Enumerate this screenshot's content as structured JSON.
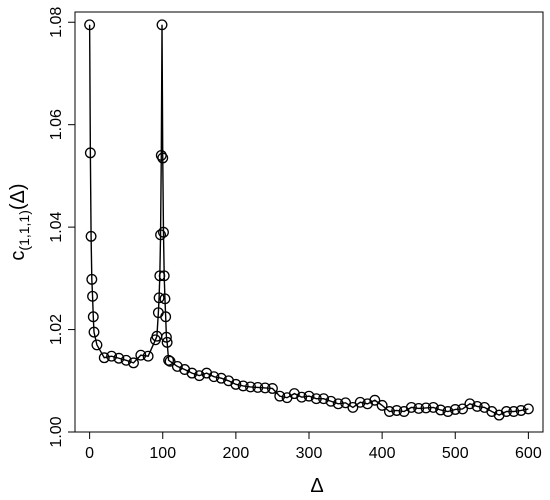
{
  "chart_data": {
    "type": "line",
    "title": "",
    "xlabel": "Δ",
    "ylabel": "c",
    "ylabel_subscript": "(1,1,1)",
    "ylabel_suffix": "(Δ)",
    "xlim": [
      -20,
      620
    ],
    "ylim": [
      1.0,
      1.082
    ],
    "xticks": [
      0,
      100,
      200,
      300,
      400,
      500,
      600
    ],
    "yticks": [
      1.0,
      1.02,
      1.04,
      1.06,
      1.08
    ],
    "xtick_labels": [
      "0",
      "100",
      "200",
      "300",
      "400",
      "500",
      "600"
    ],
    "ytick_labels": [
      "1.00",
      "1.02",
      "1.04",
      "1.06",
      "1.08"
    ],
    "grid": false,
    "markers": "open-circle",
    "series": [
      {
        "x": [
          0,
          1,
          2,
          3,
          4,
          5,
          6,
          10,
          20,
          30,
          40,
          50,
          60,
          70,
          80,
          90,
          92,
          94,
          95,
          96,
          97,
          98,
          99,
          100,
          101,
          102,
          103,
          104,
          105,
          106,
          108,
          110,
          120,
          130,
          140,
          150,
          160,
          170,
          180,
          190,
          200,
          210,
          220,
          230,
          240,
          250,
          260,
          270,
          280,
          290,
          300,
          310,
          320,
          330,
          340,
          350,
          360,
          370,
          380,
          390,
          400,
          410,
          420,
          430,
          440,
          450,
          460,
          470,
          480,
          490,
          500,
          510,
          520,
          530,
          540,
          550,
          560,
          570,
          580,
          590,
          600
        ],
        "y": [
          1.0795,
          1.0545,
          1.0382,
          1.0298,
          1.0265,
          1.0225,
          1.0195,
          1.017,
          1.0145,
          1.0148,
          1.0144,
          1.014,
          1.0135,
          1.015,
          1.0148,
          1.018,
          1.0187,
          1.0233,
          1.0262,
          1.0305,
          1.0385,
          1.054,
          1.0795,
          1.0535,
          1.039,
          1.0305,
          1.026,
          1.0225,
          1.0185,
          1.0175,
          1.014,
          1.0138,
          1.0128,
          1.0122,
          1.0115,
          1.011,
          1.0115,
          1.0108,
          1.0105,
          1.01,
          1.0093,
          1.009,
          1.0088,
          1.0087,
          1.0086,
          1.0085,
          1.007,
          1.0067,
          1.0075,
          1.0068,
          1.007,
          1.0065,
          1.0065,
          1.006,
          1.0055,
          1.0057,
          1.0048,
          1.0058,
          1.0055,
          1.0062,
          1.0052,
          1.004,
          1.0042,
          1.004,
          1.0048,
          1.0046,
          1.0047,
          1.0048,
          1.0043,
          1.004,
          1.0044,
          1.0045,
          1.0055,
          1.005,
          1.0048,
          1.004,
          1.0033,
          1.004,
          1.004,
          1.0042,
          1.0045
        ]
      }
    ]
  }
}
